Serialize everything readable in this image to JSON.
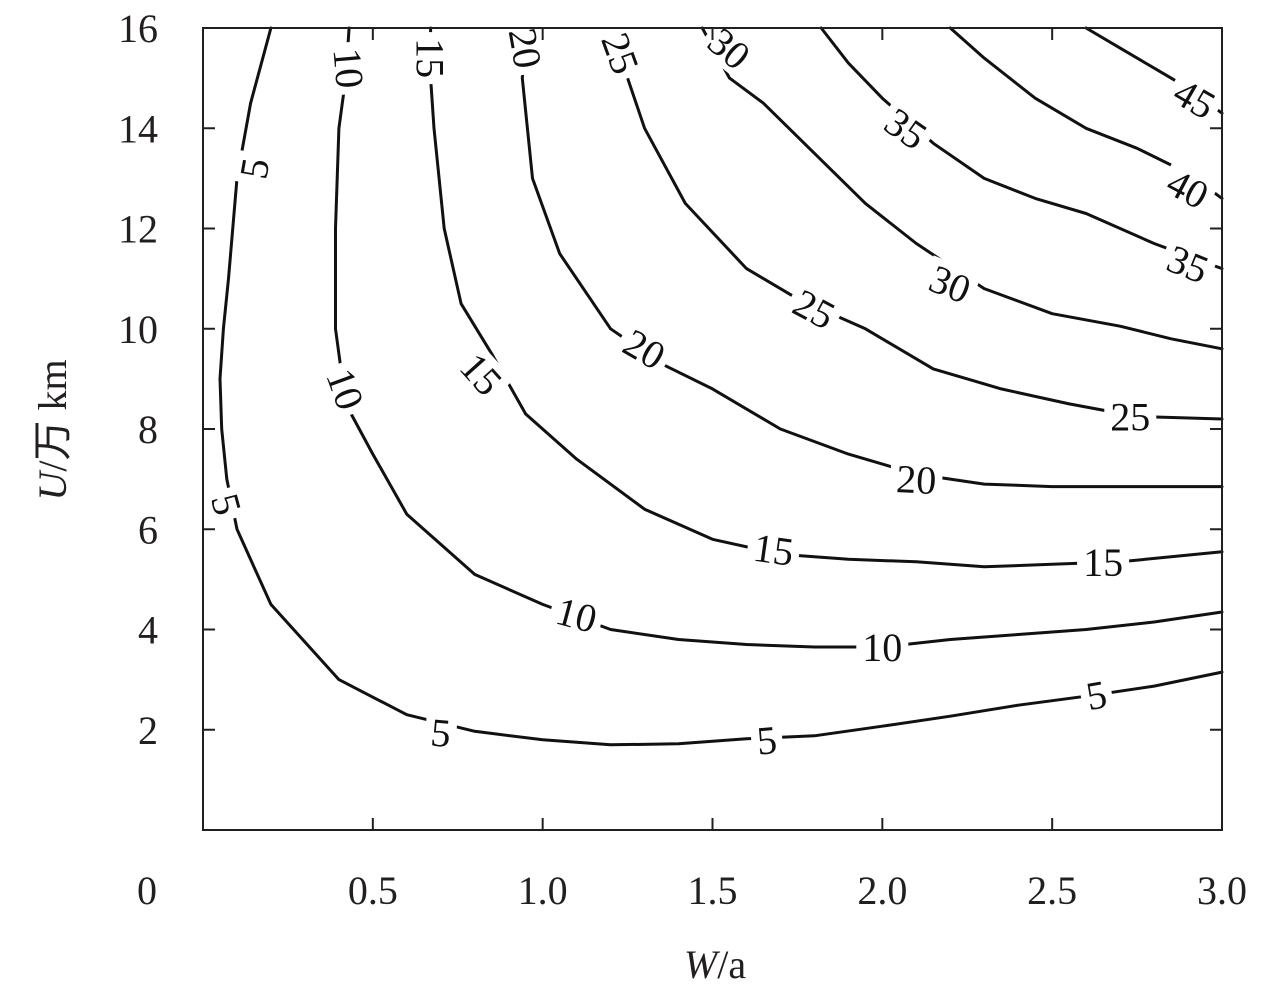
{
  "chart_data": {
    "type": "contour",
    "xlabel_main": "W",
    "xlabel_unit": "/a",
    "ylabel_main": "U",
    "ylabel_unit": "/万 km",
    "xlim": [
      0,
      3.0
    ],
    "ylim": [
      0,
      16
    ],
    "origin_label": "0",
    "xticks": [
      {
        "value": 0.5,
        "label": "0.5"
      },
      {
        "value": 1.0,
        "label": "1.0"
      },
      {
        "value": 1.5,
        "label": "1.5"
      },
      {
        "value": 2.0,
        "label": "2.0"
      },
      {
        "value": 2.5,
        "label": "2.5"
      },
      {
        "value": 3.0,
        "label": "3.0"
      }
    ],
    "yticks": [
      {
        "value": 2,
        "label": "2"
      },
      {
        "value": 4,
        "label": "4"
      },
      {
        "value": 6,
        "label": "6"
      },
      {
        "value": 8,
        "label": "8"
      },
      {
        "value": 10,
        "label": "10"
      },
      {
        "value": 12,
        "label": "12"
      },
      {
        "value": 14,
        "label": "14"
      },
      {
        "value": 16,
        "label": "16"
      }
    ],
    "levels": [
      {
        "level": 5,
        "points": [
          [
            0.2,
            16
          ],
          [
            0.14,
            14.5
          ],
          [
            0.1,
            13
          ],
          [
            0.075,
            11
          ],
          [
            0.06,
            10
          ],
          [
            0.05,
            9
          ],
          [
            0.055,
            8
          ],
          [
            0.07,
            7
          ],
          [
            0.1,
            6
          ],
          [
            0.2,
            4.5
          ],
          [
            0.4,
            3
          ],
          [
            0.6,
            2.3
          ],
          [
            0.8,
            1.97
          ],
          [
            1.0,
            1.8
          ],
          [
            1.2,
            1.7
          ],
          [
            1.4,
            1.72
          ],
          [
            1.6,
            1.82
          ],
          [
            1.8,
            1.88
          ],
          [
            2.0,
            2.07
          ],
          [
            2.2,
            2.27
          ],
          [
            2.4,
            2.49
          ],
          [
            2.6,
            2.67
          ],
          [
            2.8,
            2.87
          ],
          [
            3.0,
            3.15
          ]
        ],
        "labels": [
          {
            "x": 0.15,
            "y": 13.2,
            "text": "5",
            "angle": -80
          },
          {
            "x": 0.07,
            "y": 6.5,
            "text": "5",
            "angle": 75
          },
          {
            "x": 0.7,
            "y": 1.95,
            "text": "5",
            "angle": 5
          },
          {
            "x": 1.66,
            "y": 1.8,
            "text": "5",
            "angle": -5
          },
          {
            "x": 2.63,
            "y": 2.7,
            "text": "5",
            "angle": -10
          }
        ]
      },
      {
        "level": 10,
        "points": [
          [
            0.43,
            16
          ],
          [
            0.42,
            15
          ],
          [
            0.4,
            14
          ],
          [
            0.39,
            12
          ],
          [
            0.39,
            10
          ],
          [
            0.42,
            8.5
          ],
          [
            0.5,
            7.5
          ],
          [
            0.6,
            6.3
          ],
          [
            0.8,
            5.1
          ],
          [
            1.0,
            4.5
          ],
          [
            1.2,
            4.0
          ],
          [
            1.4,
            3.8
          ],
          [
            1.6,
            3.7
          ],
          [
            1.8,
            3.65
          ],
          [
            2.0,
            3.65
          ],
          [
            2.2,
            3.8
          ],
          [
            2.4,
            3.9
          ],
          [
            2.6,
            4.0
          ],
          [
            2.8,
            4.15
          ],
          [
            3.0,
            4.35
          ]
        ],
        "labels": [
          {
            "x": 0.43,
            "y": 15.2,
            "text": "10",
            "angle": 85
          },
          {
            "x": 0.42,
            "y": 8.8,
            "text": "10",
            "angle": 70
          },
          {
            "x": 1.1,
            "y": 4.3,
            "text": "10",
            "angle": 15
          },
          {
            "x": 2.0,
            "y": 3.65,
            "text": "10",
            "angle": 0
          }
        ]
      },
      {
        "level": 15,
        "points": [
          [
            0.67,
            16
          ],
          [
            0.67,
            15
          ],
          [
            0.68,
            14
          ],
          [
            0.71,
            12
          ],
          [
            0.76,
            10.5
          ],
          [
            0.85,
            9.5
          ],
          [
            0.95,
            8.3
          ],
          [
            1.1,
            7.4
          ],
          [
            1.3,
            6.4
          ],
          [
            1.5,
            5.8
          ],
          [
            1.7,
            5.5
          ],
          [
            1.9,
            5.4
          ],
          [
            2.1,
            5.35
          ],
          [
            2.3,
            5.25
          ],
          [
            2.5,
            5.3
          ],
          [
            2.7,
            5.35
          ],
          [
            2.85,
            5.45
          ],
          [
            3.0,
            5.55
          ]
        ],
        "labels": [
          {
            "x": 0.67,
            "y": 15.4,
            "text": "15",
            "angle": 90
          },
          {
            "x": 0.82,
            "y": 9.1,
            "text": "15",
            "angle": 48
          },
          {
            "x": 1.68,
            "y": 5.6,
            "text": "15",
            "angle": 8
          },
          {
            "x": 2.65,
            "y": 5.35,
            "text": "15",
            "angle": 0
          }
        ]
      },
      {
        "level": 20,
        "points": [
          [
            0.95,
            16
          ],
          [
            0.94,
            15
          ],
          [
            0.97,
            13
          ],
          [
            1.05,
            11.5
          ],
          [
            1.2,
            10
          ],
          [
            1.35,
            9.3
          ],
          [
            1.5,
            8.8
          ],
          [
            1.7,
            8.0
          ],
          [
            1.9,
            7.5
          ],
          [
            2.1,
            7.1
          ],
          [
            2.3,
            6.9
          ],
          [
            2.5,
            6.85
          ],
          [
            2.7,
            6.85
          ],
          [
            2.9,
            6.85
          ],
          [
            3.0,
            6.85
          ]
        ],
        "labels": [
          {
            "x": 0.95,
            "y": 15.6,
            "text": "20",
            "angle": 80
          },
          {
            "x": 1.3,
            "y": 9.6,
            "text": "20",
            "angle": 30
          },
          {
            "x": 2.1,
            "y": 7.0,
            "text": "20",
            "angle": 3
          }
        ]
      },
      {
        "level": 25,
        "points": [
          [
            1.23,
            16
          ],
          [
            1.25,
            15
          ],
          [
            1.3,
            14
          ],
          [
            1.42,
            12.5
          ],
          [
            1.6,
            11.2
          ],
          [
            1.75,
            10.6
          ],
          [
            1.95,
            10.0
          ],
          [
            2.15,
            9.2
          ],
          [
            2.35,
            8.8
          ],
          [
            2.55,
            8.5
          ],
          [
            2.75,
            8.25
          ],
          [
            3.0,
            8.2
          ]
        ],
        "labels": [
          {
            "x": 1.23,
            "y": 15.5,
            "text": "25",
            "angle": 70
          },
          {
            "x": 1.8,
            "y": 10.4,
            "text": "25",
            "angle": 28
          },
          {
            "x": 2.73,
            "y": 8.25,
            "text": "25",
            "angle": 0
          }
        ]
      },
      {
        "level": 30,
        "points": [
          [
            1.47,
            16
          ],
          [
            1.55,
            15
          ],
          [
            1.65,
            14.5
          ],
          [
            1.8,
            13.5
          ],
          [
            1.95,
            12.5
          ],
          [
            2.1,
            11.7
          ],
          [
            2.3,
            10.8
          ],
          [
            2.5,
            10.3
          ],
          [
            2.7,
            10.05
          ],
          [
            2.85,
            9.8
          ],
          [
            3.0,
            9.6
          ]
        ],
        "labels": [
          {
            "x": 1.55,
            "y": 15.6,
            "text": "30",
            "angle": 40
          },
          {
            "x": 2.2,
            "y": 10.9,
            "text": "30",
            "angle": 22
          }
        ]
      },
      {
        "level": 35,
        "points": [
          [
            1.82,
            16
          ],
          [
            1.9,
            15.3
          ],
          [
            2.0,
            14.6
          ],
          [
            2.15,
            13.7
          ],
          [
            2.3,
            13.0
          ],
          [
            2.45,
            12.6
          ],
          [
            2.6,
            12.3
          ],
          [
            2.8,
            11.7
          ],
          [
            3.0,
            11.2
          ]
        ],
        "labels": [
          {
            "x": 2.07,
            "y": 14.0,
            "text": "35",
            "angle": 35
          },
          {
            "x": 2.9,
            "y": 11.3,
            "text": "35",
            "angle": 22
          }
        ]
      },
      {
        "level": 40,
        "points": [
          [
            2.2,
            16
          ],
          [
            2.3,
            15.4
          ],
          [
            2.45,
            14.6
          ],
          [
            2.6,
            14.0
          ],
          [
            2.75,
            13.6
          ],
          [
            2.9,
            13.1
          ],
          [
            3.0,
            12.6
          ]
        ],
        "labels": [
          {
            "x": 2.9,
            "y": 12.8,
            "text": "40",
            "angle": 28
          }
        ]
      },
      {
        "level": 45,
        "points": [
          [
            2.6,
            16
          ],
          [
            2.7,
            15.6
          ],
          [
            2.8,
            15.2
          ],
          [
            2.9,
            14.8
          ],
          [
            3.0,
            14.3
          ]
        ],
        "labels": [
          {
            "x": 2.92,
            "y": 14.6,
            "text": "45",
            "angle": 30
          }
        ]
      }
    ]
  }
}
